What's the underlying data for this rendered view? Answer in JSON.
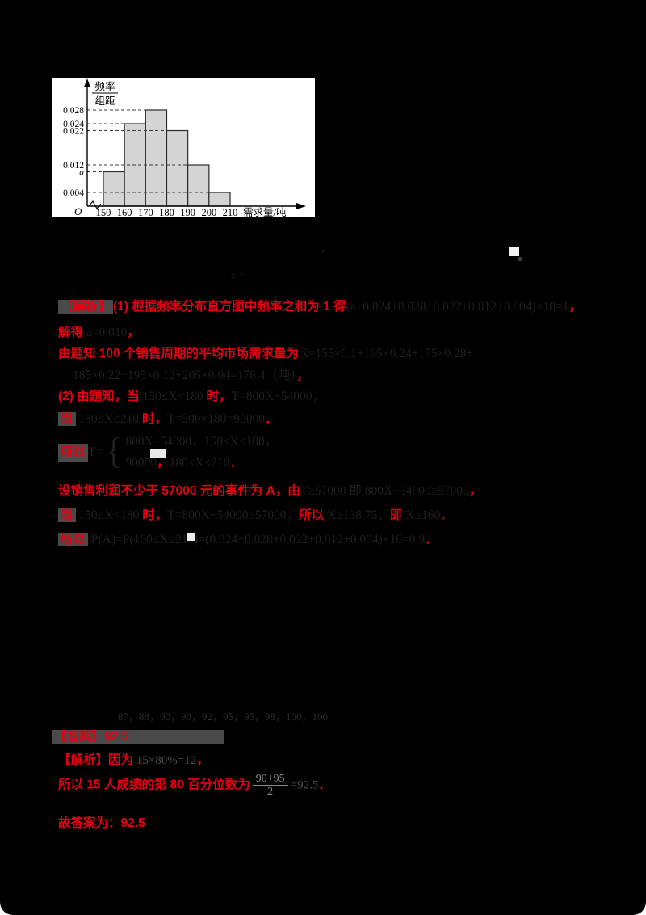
{
  "page": {
    "background": "#000000",
    "corner_mask": "#ffffff"
  },
  "chart_data": {
    "type": "bar",
    "subtype": "frequency-distribution-histogram",
    "xlabel": "需求量/吨",
    "ylabel": "频率/组距",
    "ylabel_numerator": "频率",
    "ylabel_denominator": "组距",
    "origin_label": "O",
    "bins": [
      [
        150,
        160
      ],
      [
        160,
        170
      ],
      [
        170,
        180
      ],
      [
        180,
        190
      ],
      [
        190,
        200
      ],
      [
        200,
        210
      ]
    ],
    "values": [
      0.01,
      0.024,
      0.028,
      0.022,
      0.012,
      0.004
    ],
    "bin_width": 10,
    "x_ticks": [
      "150",
      "160",
      "170",
      "180",
      "190",
      "200",
      "210"
    ],
    "y_marks": [
      {
        "label": "0.028",
        "value": 0.028,
        "italic": false
      },
      {
        "label": "0.024",
        "value": 0.024,
        "italic": false
      },
      {
        "label": "0.022",
        "value": 0.022,
        "italic": false
      },
      {
        "label": "0.012",
        "value": 0.012,
        "italic": false
      },
      {
        "label": "a",
        "value": 0.01,
        "italic": true
      },
      {
        "label": "0.004",
        "value": 0.004,
        "italic": false
      }
    ],
    "ylim": [
      0,
      0.03
    ],
    "grid": "dashed leader lines from axis to bar tops",
    "legend_position": "none",
    "bar_fill": "#d4d4d4",
    "bar_stroke": "#2a2a2a",
    "note": "bar [150,160) height labeled a on axis (a = 0.010)"
  },
  "stray": {
    "glyph_top": "▪",
    "xbar_mark": "x̄ ="
  },
  "solution": {
    "lines": [
      {
        "type": "text",
        "segments": [
          {
            "t": "【解析】",
            "c": "r",
            "box": true
          },
          {
            "t": "(1) 根据频率分布直方图中频率之和为 1 得",
            "c": "r"
          },
          {
            "t": "(a+0.024+0.028+0.022+0.012+0.004)×10=1",
            "c": "d"
          },
          {
            "t": "，",
            "c": "r"
          }
        ]
      },
      {
        "type": "text",
        "segments": [
          {
            "t": "解得",
            "c": "r"
          },
          {
            "t": " a=0.010",
            "c": "d"
          },
          {
            "t": "，",
            "c": "r"
          }
        ]
      },
      {
        "type": "text",
        "segments": [
          {
            "t": "由题知 100 个销售周期的平均市场需求量为",
            "c": "r"
          },
          {
            "t": " x̄=155×0.1+165×0.24+175×0.28+",
            "c": "d"
          }
        ]
      },
      {
        "type": "text",
        "segments": [
          {
            "t": "185×0.22+195×0.12+205×0.04=176.4（吨）",
            "c": "d"
          },
          {
            "t": "，",
            "c": "r"
          }
        ]
      },
      {
        "type": "text",
        "segments": [
          {
            "t": "(2) 由题知，当",
            "c": "r"
          },
          {
            "t": " 150≤X<180 ",
            "c": "d"
          },
          {
            "t": "时，",
            "c": "r"
          },
          {
            "t": "T=800X−54000，",
            "c": "d"
          }
        ]
      },
      {
        "type": "text",
        "segments": [
          {
            "t": "当",
            "c": "r",
            "box": true
          },
          {
            "t": " 180≤X≤210 ",
            "c": "d"
          },
          {
            "t": "时，",
            "c": "r"
          },
          {
            "t": "T=500×180=90000",
            "c": "d"
          },
          {
            "t": "．",
            "c": "r"
          }
        ]
      },
      {
        "type": "piecewise",
        "pre": [
          {
            "t": "所以",
            "c": "r",
            "box": true
          },
          {
            "t": " T=",
            "c": "d"
          }
        ],
        "rows": [
          [
            {
              "t": "800X−54000，",
              "c": "d"
            },
            {
              "t": "150≤X<180，",
              "c": "d"
            }
          ],
          [
            {
              "t": "90000",
              "c": "d"
            },
            {
              "t": "，",
              "c": "r"
            },
            {
              "t": "180≤X≤210",
              "c": "d"
            },
            {
              "t": "．",
              "c": "r"
            }
          ]
        ]
      },
      {
        "type": "text",
        "segments": [
          {
            "t": "设销售利润不少于 57000 元的事件为 A，由",
            "c": "r"
          },
          {
            "t": "T≥57000 即 800X−54000≥57000",
            "c": "d"
          },
          {
            "t": "，",
            "c": "r"
          }
        ]
      },
      {
        "type": "text",
        "segments": [
          {
            "t": "当",
            "c": "r",
            "box": true
          },
          {
            "t": " 150≤X<180 ",
            "c": "d"
          },
          {
            "t": "时，",
            "c": "r"
          },
          {
            "t": "T=800X−54000≥57000，",
            "c": "d"
          },
          {
            "t": "所以",
            "c": "r"
          },
          {
            "t": " X≥138.75，",
            "c": "d"
          },
          {
            "t": "即",
            "c": "r"
          },
          {
            "t": " X≥160",
            "c": "d"
          },
          {
            "t": "．",
            "c": "r"
          }
        ]
      },
      {
        "type": "text",
        "segments": [
          {
            "t": "所以",
            "c": "r",
            "box": true
          },
          {
            "t": " P(A)=P(160≤X≤210)=(0.024+0.028+0.022+0.012+0.004)×10=0.9",
            "c": "d"
          },
          {
            "t": "．",
            "c": "r"
          }
        ]
      },
      {
        "type": "text",
        "segments": [
          {
            "t": "87，88，90，90，92，95，95，98，100，100",
            "c": "dim"
          }
        ]
      },
      {
        "type": "text",
        "segments": [
          {
            "t": "【答案】92.5",
            "c": "r",
            "box": "wide"
          }
        ]
      },
      {
        "type": "text",
        "segments": [
          {
            "t": "【解析】因为",
            "c": "r"
          },
          {
            "t": " 15×80%=12",
            "c": "g"
          },
          {
            "t": "，",
            "c": "r"
          }
        ]
      },
      {
        "type": "fraction",
        "pre": [
          {
            "t": "所以 15 人成绩的第 80 百分位数为",
            "c": "r"
          }
        ],
        "num": "90+95",
        "den": "2",
        "post": [
          {
            "t": "=92.5",
            "c": "g"
          },
          {
            "t": "．",
            "c": "r"
          }
        ]
      },
      {
        "type": "text",
        "segments": [
          {
            "t": "故答案为：92.5",
            "c": "r"
          }
        ]
      }
    ]
  }
}
